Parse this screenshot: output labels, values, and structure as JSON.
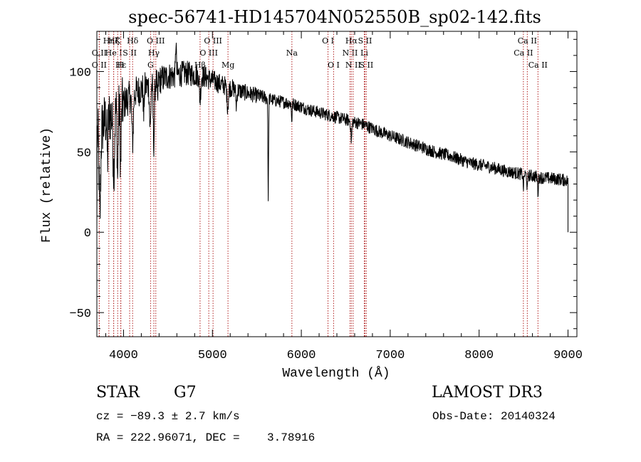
{
  "chart_data": {
    "type": "line",
    "title": "spec-56741-HD145704N052550B_sp02-142.fits",
    "xlabel": "Wavelength (Å)",
    "ylabel": "Flux (relative)",
    "xlim": [
      3700,
      9100
    ],
    "ylim": [
      -65,
      125
    ],
    "xticks": [
      4000,
      5000,
      6000,
      7000,
      8000,
      9000
    ],
    "xtick_labels": [
      "4000",
      "5000",
      "6000",
      "7000",
      "8000",
      "9000"
    ],
    "yticks": [
      -50,
      0,
      50,
      100
    ],
    "ytick_labels": [
      "−50",
      "0",
      "50",
      "100"
    ],
    "x_minor_step": 200,
    "y_minor_step": 10,
    "grid": false,
    "series": [
      {
        "name": "spectrum",
        "color": "#000000",
        "continuum": [
          [
            3700,
            60
          ],
          [
            3800,
            70
          ],
          [
            3900,
            75
          ],
          [
            4000,
            80
          ],
          [
            4100,
            86
          ],
          [
            4300,
            92
          ],
          [
            4500,
            97
          ],
          [
            4700,
            99
          ],
          [
            4900,
            97
          ],
          [
            5100,
            92
          ],
          [
            5300,
            88
          ],
          [
            5500,
            85
          ],
          [
            5700,
            82
          ],
          [
            5900,
            80
          ],
          [
            6100,
            76
          ],
          [
            6300,
            73
          ],
          [
            6500,
            70
          ],
          [
            6700,
            67
          ],
          [
            6900,
            62
          ],
          [
            7100,
            58
          ],
          [
            7300,
            54
          ],
          [
            7500,
            50
          ],
          [
            7700,
            47
          ],
          [
            7900,
            43
          ],
          [
            8100,
            41
          ],
          [
            8300,
            38
          ],
          [
            8500,
            36
          ],
          [
            8700,
            34
          ],
          [
            8900,
            33
          ],
          [
            9000,
            32
          ]
        ],
        "absorption_features": [
          [
            3734,
            12,
            55
          ],
          [
            3820,
            8,
            25
          ],
          [
            3890,
            12,
            35
          ],
          [
            3934,
            8,
            42
          ],
          [
            3968,
            8,
            40
          ],
          [
            4102,
            12,
            30
          ],
          [
            4227,
            6,
            18
          ],
          [
            4300,
            10,
            28
          ],
          [
            4340,
            10,
            38
          ],
          [
            4383,
            6,
            15
          ],
          [
            4861,
            10,
            15
          ],
          [
            5172,
            12,
            12
          ],
          [
            5269,
            8,
            10
          ],
          [
            5628,
            5,
            64
          ],
          [
            5893,
            6,
            10
          ],
          [
            6563,
            8,
            12
          ],
          [
            8498,
            6,
            8
          ],
          [
            8542,
            6,
            10
          ],
          [
            8662,
            6,
            10
          ]
        ],
        "emission_features": [
          [
            4590,
            6,
            22
          ]
        ],
        "noise_amplitude_blue": 12,
        "noise_amplitude_red": 4,
        "end_drop": [
          [
            3705,
            2
          ],
          [
            9000,
            0
          ]
        ]
      }
    ],
    "line_markers": [
      {
        "label": "O II",
        "wavelength": 3727,
        "row": 3
      },
      {
        "label": "Hη",
        "wavelength": 3835,
        "row": 1
      },
      {
        "label": "Hζ",
        "wavelength": 3889,
        "row": 1
      },
      {
        "label": "O II",
        "wavelength": 3727,
        "row": 2
      },
      {
        "label": "K",
        "wavelength": 3934,
        "row": 1
      },
      {
        "label": "He I",
        "wavelength": 3889,
        "row": 2
      },
      {
        "label": "Hε",
        "wavelength": 3970,
        "row": 3
      },
      {
        "label": "H",
        "wavelength": 3968,
        "row": 3
      },
      {
        "label": "S II",
        "wavelength": 4069,
        "row": 2
      },
      {
        "label": "Hδ",
        "wavelength": 4102,
        "row": 1
      },
      {
        "label": "G",
        "wavelength": 4304,
        "row": 3
      },
      {
        "label": "Hγ",
        "wavelength": 4341,
        "row": 2
      },
      {
        "label": "O III",
        "wavelength": 4363,
        "row": 1
      },
      {
        "label": "Hβ",
        "wavelength": 4861,
        "row": 3
      },
      {
        "label": "O III",
        "wavelength": 4959,
        "row": 2
      },
      {
        "label": "O III",
        "wavelength": 5007,
        "row": 1
      },
      {
        "label": "Mg",
        "wavelength": 5175,
        "row": 3
      },
      {
        "label": "Na",
        "wavelength": 5894,
        "row": 2
      },
      {
        "label": "O I",
        "wavelength": 6300,
        "row": 1
      },
      {
        "label": "O I",
        "wavelength": 6363,
        "row": 3
      },
      {
        "label": "N II",
        "wavelength": 6548,
        "row": 2
      },
      {
        "label": "Hα",
        "wavelength": 6563,
        "row": 1
      },
      {
        "label": "N II",
        "wavelength": 6583,
        "row": 3
      },
      {
        "label": "Li",
        "wavelength": 6708,
        "row": 2
      },
      {
        "label": "S II",
        "wavelength": 6716,
        "row": 1
      },
      {
        "label": "S II",
        "wavelength": 6731,
        "row": 3
      },
      {
        "label": "Ca II",
        "wavelength": 8498,
        "row": 2
      },
      {
        "label": "Ca II",
        "wavelength": 8542,
        "row": 1
      },
      {
        "label": "Ca II",
        "wavelength": 8662,
        "row": 3
      }
    ],
    "marker_color": "#b22222"
  },
  "info": {
    "object_class": "STAR",
    "subclass": "G7",
    "survey": "LAMOST DR3",
    "redshift": "cz = −89.3 ± 2.7 km/s",
    "obs_date": "Obs-Date: 20140324",
    "coordinates": "RA = 222.96071, DEC =    3.78916"
  }
}
